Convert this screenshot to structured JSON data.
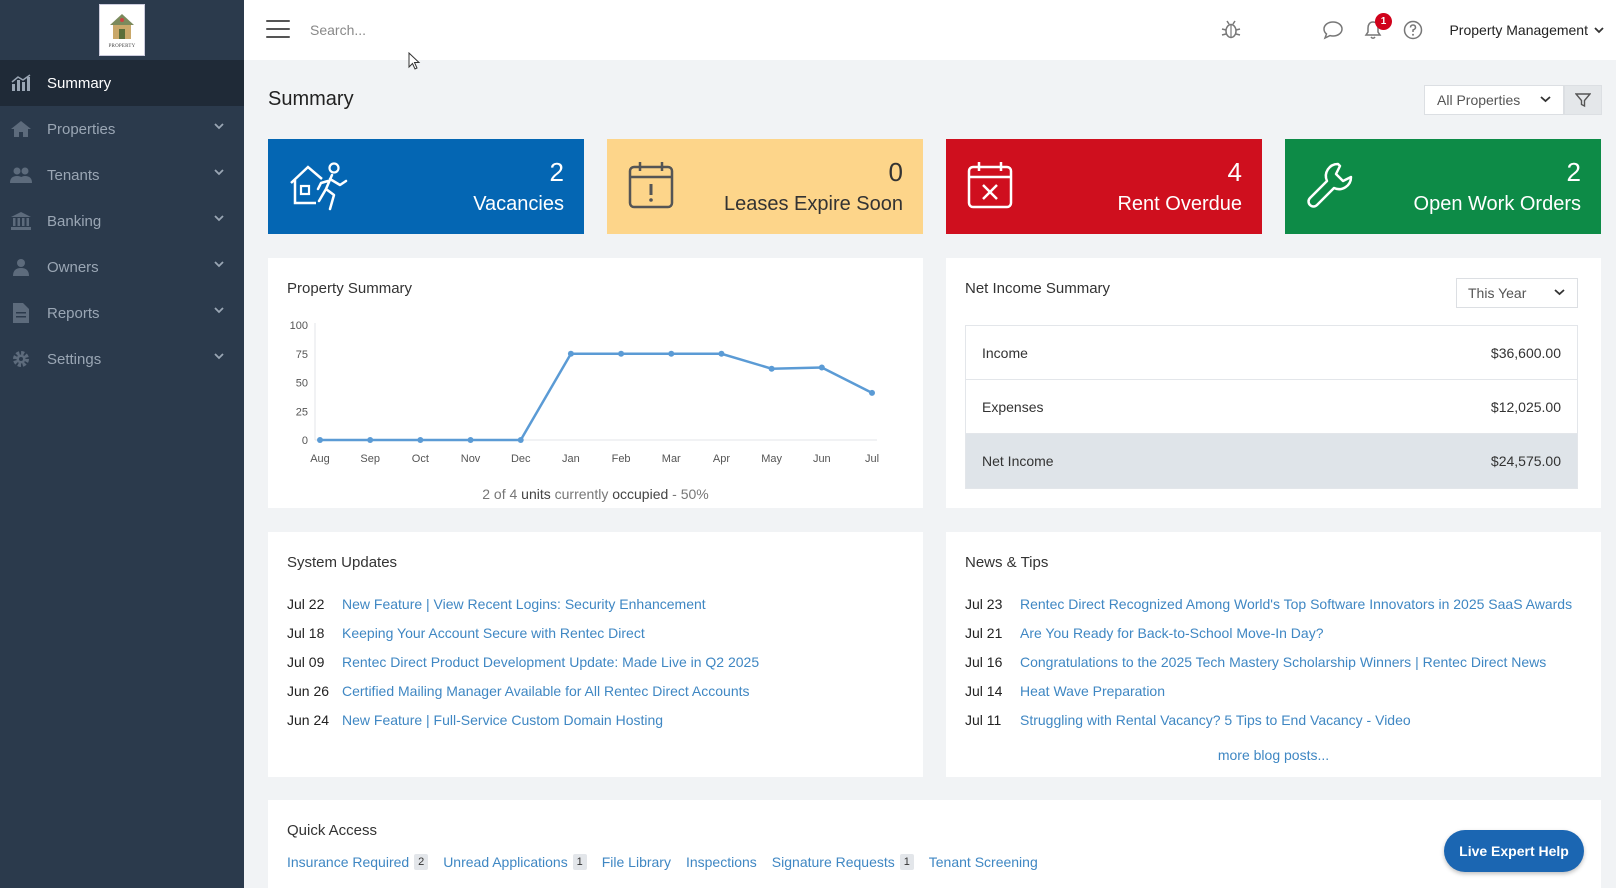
{
  "logo": {
    "text": "PROPERTY"
  },
  "sidebar": {
    "items": [
      {
        "label": "Summary",
        "icon": "chart-icon",
        "active": true
      },
      {
        "label": "Properties",
        "icon": "home-icon"
      },
      {
        "label": "Tenants",
        "icon": "users-icon"
      },
      {
        "label": "Banking",
        "icon": "bank-icon"
      },
      {
        "label": "Owners",
        "icon": "user-icon"
      },
      {
        "label": "Reports",
        "icon": "document-icon"
      },
      {
        "label": "Settings",
        "icon": "gear-icon"
      }
    ]
  },
  "topbar": {
    "search_placeholder": "Search...",
    "notification_count": "1",
    "account_label": "Property Management"
  },
  "page": {
    "title": "Summary",
    "property_filter": "All Properties"
  },
  "stats": {
    "vacancies": {
      "value": "2",
      "label": "Vacancies"
    },
    "leases": {
      "value": "0",
      "label": "Leases Expire Soon"
    },
    "overdue": {
      "value": "4",
      "label": "Rent Overdue"
    },
    "work_orders": {
      "value": "2",
      "label": "Open Work Orders"
    }
  },
  "property_summary": {
    "title": "Property Summary",
    "footer": {
      "prefix": "2 of 4 ",
      "units": "units",
      "mid": " currently ",
      "occupied": "occupied",
      "suffix": " - 50%"
    }
  },
  "chart_data": {
    "type": "line",
    "categories": [
      "Aug",
      "Sep",
      "Oct",
      "Nov",
      "Dec",
      "Jan",
      "Feb",
      "Mar",
      "Apr",
      "May",
      "Jun",
      "Jul"
    ],
    "values": [
      0,
      0,
      0,
      0,
      0,
      75,
      75,
      75,
      75,
      62,
      63,
      41
    ],
    "yticks": [
      "100",
      "75",
      "50",
      "25",
      "0"
    ],
    "ylim": [
      0,
      100
    ],
    "color": "#5b9bd5",
    "grid": false
  },
  "net_income": {
    "title": "Net Income Summary",
    "period": "This Year",
    "rows": [
      {
        "label": "Income",
        "value": "$36,600.00"
      },
      {
        "label": "Expenses",
        "value": "$12,025.00"
      },
      {
        "label": "Net Income",
        "value": "$24,575.00"
      }
    ]
  },
  "system_updates": {
    "title": "System Updates",
    "items": [
      {
        "date": "Jul 22",
        "text": "New Feature | View Recent Logins: Security Enhancement"
      },
      {
        "date": "Jul 18",
        "text": "Keeping Your Account Secure with Rentec Direct"
      },
      {
        "date": "Jul 09",
        "text": "Rentec Direct Product Development Update: Made Live in Q2 2025"
      },
      {
        "date": "Jun 26",
        "text": "Certified Mailing Manager Available for All Rentec Direct Accounts"
      },
      {
        "date": "Jun 24",
        "text": "New Feature | Full-Service Custom Domain Hosting"
      }
    ]
  },
  "news": {
    "title": "News & Tips",
    "items": [
      {
        "date": "Jul 23",
        "text": "Rentec Direct Recognized Among World's Top Software Innovators in 2025 SaaS Awards"
      },
      {
        "date": "Jul 21",
        "text": "Are You Ready for Back-to-School Move-In Day?"
      },
      {
        "date": "Jul 16",
        "text": "Congratulations to the 2025 Tech Mastery Scholarship Winners | Rentec Direct News"
      },
      {
        "date": "Jul 14",
        "text": "Heat Wave Preparation"
      },
      {
        "date": "Jul 11",
        "text": "Struggling with Rental Vacancy? 5 Tips to End Vacancy - Video"
      }
    ],
    "more": "more blog posts..."
  },
  "quick_access": {
    "title": "Quick Access",
    "links": [
      {
        "label": "Insurance Required",
        "count": "2"
      },
      {
        "label": "Unread Applications",
        "count": "1"
      },
      {
        "label": "File Library",
        "count": ""
      },
      {
        "label": "Inspections",
        "count": ""
      },
      {
        "label": "Signature Requests",
        "count": "1"
      },
      {
        "label": "Tenant Screening",
        "count": ""
      }
    ]
  },
  "live_help": "Live Expert Help"
}
